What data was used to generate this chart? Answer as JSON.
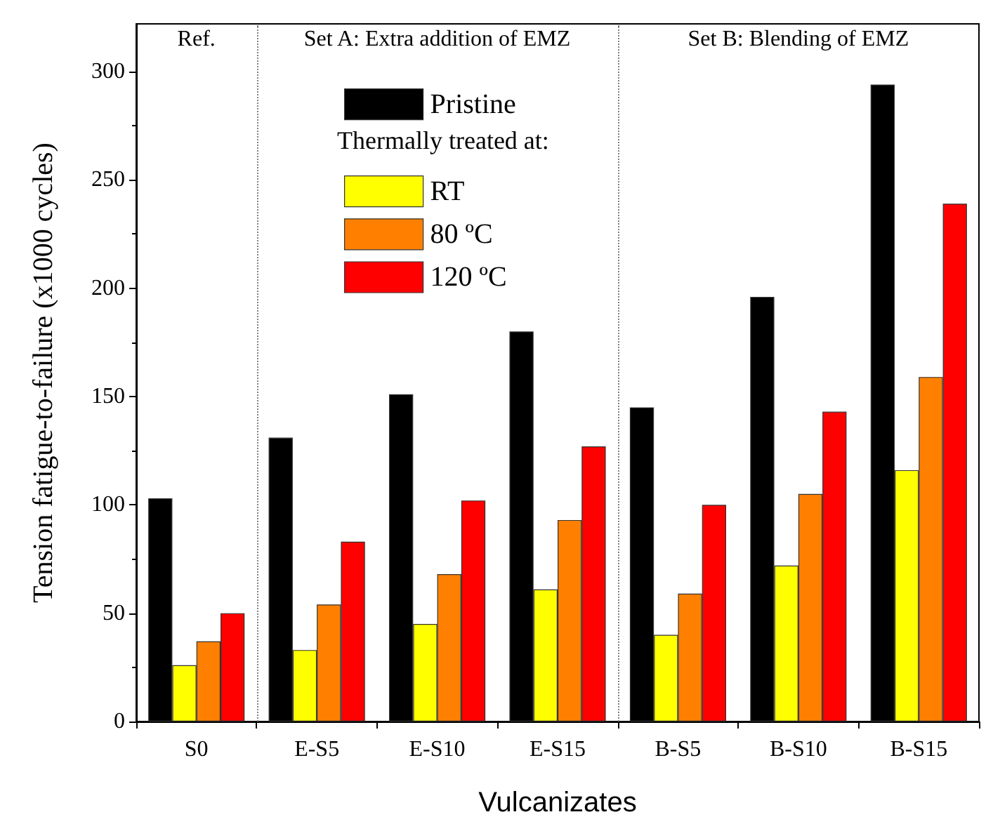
{
  "chart_data": {
    "type": "bar",
    "xlabel": "Vulcanizates",
    "ylabel": "Tension fatigue-to-failure (x1000 cycles)",
    "categories": [
      "S0",
      "E-S5",
      "E-S10",
      "E-S15",
      "B-S5",
      "B-S10",
      "B-S15"
    ],
    "series": [
      {
        "name": "Pristine",
        "color": "#000000",
        "values": [
          103,
          131,
          151,
          180,
          145,
          196,
          294
        ]
      },
      {
        "name": "RT",
        "color": "#ffff00",
        "values": [
          26,
          33,
          45,
          61,
          40,
          72,
          116
        ]
      },
      {
        "name": "80 ºC",
        "color": "#ff8000",
        "values": [
          37,
          54,
          68,
          93,
          59,
          105,
          159
        ]
      },
      {
        "name": "120 ºC",
        "color": "#ff0000",
        "values": [
          50,
          83,
          102,
          127,
          100,
          143,
          239
        ]
      }
    ],
    "legend_title": "Thermally treated at:",
    "legend": "top",
    "ylim": [
      0,
      322
    ],
    "yticks": [
      0,
      50,
      100,
      150,
      200,
      250,
      300
    ],
    "grid": false,
    "annotations": [
      "Ref.",
      "Set A: Extra addition of EMZ",
      "Set B: Blending of EMZ"
    ]
  }
}
